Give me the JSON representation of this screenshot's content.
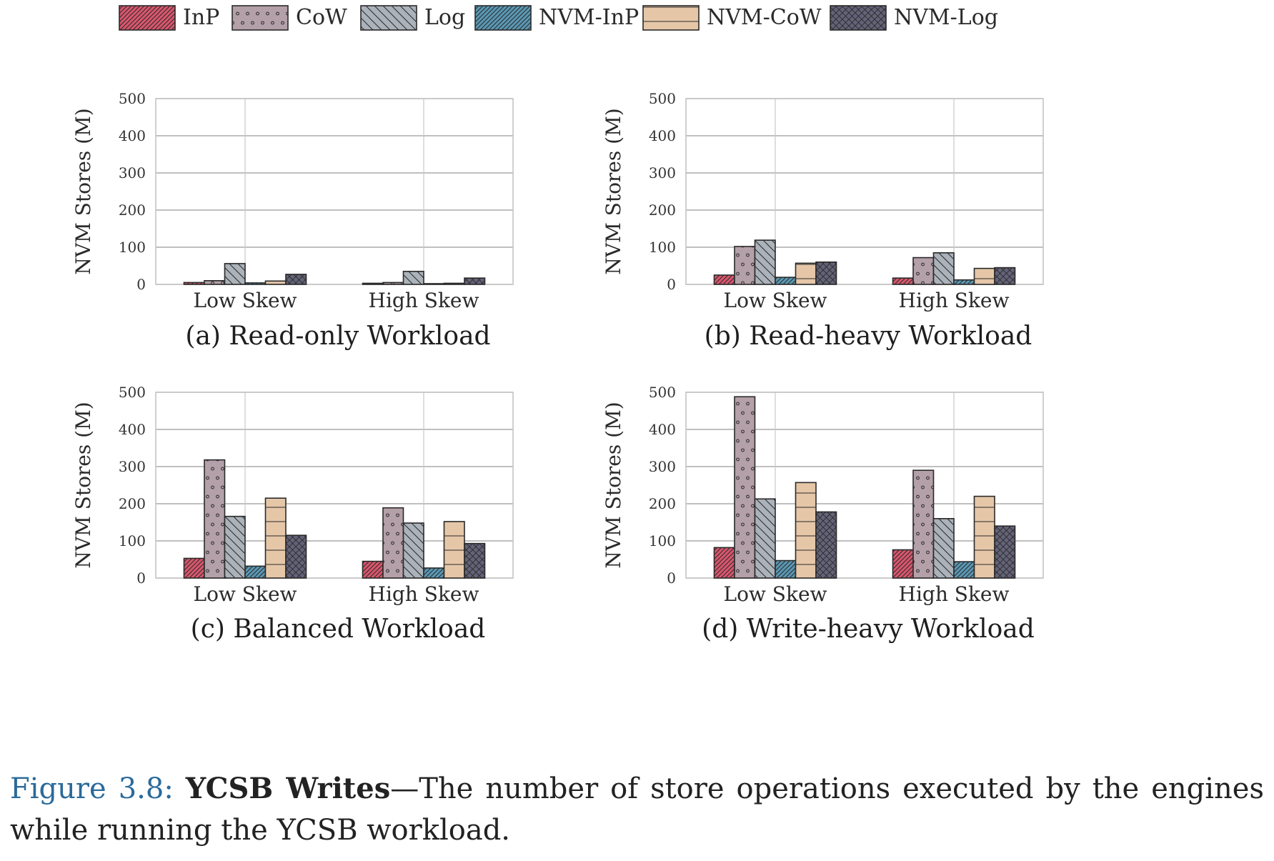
{
  "legend": [
    {
      "name": "InP",
      "color": "#d9566d",
      "pattern": "diag-fwd-dense"
    },
    {
      "name": "CoW",
      "color": "#b4a0a8",
      "pattern": "dots"
    },
    {
      "name": "Log",
      "color": "#abb2ba",
      "pattern": "diag-back"
    },
    {
      "name": "NVM-InP",
      "color": "#5a98b4",
      "pattern": "diag-fwd-dense"
    },
    {
      "name": "NVM-CoW",
      "color": "#e5c7a8",
      "pattern": "horizontal"
    },
    {
      "name": "NVM-Log",
      "color": "#636278",
      "pattern": "crosshatch"
    }
  ],
  "caption": {
    "label": "Figure 3.8:",
    "bold": "YCSB Writes",
    "text": "—The number of store operations executed by the engines while running the YCSB workload."
  },
  "chart_data": [
    {
      "type": "bar",
      "title": "(a) Read-only Workload",
      "ylabel": "NVM Stores (M)",
      "xlabel": "",
      "ylim": [
        0,
        500
      ],
      "yticks": [
        0,
        100,
        200,
        300,
        400,
        500
      ],
      "grid": true,
      "categories": [
        "Low Skew",
        "High Skew"
      ],
      "series": [
        {
          "name": "InP",
          "values": [
            5,
            3
          ]
        },
        {
          "name": "CoW",
          "values": [
            10,
            5
          ]
        },
        {
          "name": "Log",
          "values": [
            56,
            35
          ]
        },
        {
          "name": "NVM-InP",
          "values": [
            4,
            2
          ]
        },
        {
          "name": "NVM-CoW",
          "values": [
            9,
            3
          ]
        },
        {
          "name": "NVM-Log",
          "values": [
            27,
            17
          ]
        }
      ]
    },
    {
      "type": "bar",
      "title": "(b) Read-heavy Workload",
      "ylabel": "NVM Stores (M)",
      "xlabel": "",
      "ylim": [
        0,
        500
      ],
      "yticks": [
        0,
        100,
        200,
        300,
        400,
        500
      ],
      "grid": true,
      "categories": [
        "Low Skew",
        "High Skew"
      ],
      "series": [
        {
          "name": "InP",
          "values": [
            25,
            17
          ]
        },
        {
          "name": "CoW",
          "values": [
            102,
            72
          ]
        },
        {
          "name": "Log",
          "values": [
            119,
            85
          ]
        },
        {
          "name": "NVM-InP",
          "values": [
            19,
            12
          ]
        },
        {
          "name": "NVM-CoW",
          "values": [
            57,
            43
          ]
        },
        {
          "name": "NVM-Log",
          "values": [
            60,
            45
          ]
        }
      ]
    },
    {
      "type": "bar",
      "title": "(c) Balanced Workload",
      "ylabel": "NVM Stores (M)",
      "xlabel": "",
      "ylim": [
        0,
        500
      ],
      "yticks": [
        0,
        100,
        200,
        300,
        400,
        500
      ],
      "grid": true,
      "categories": [
        "Low Skew",
        "High Skew"
      ],
      "series": [
        {
          "name": "InP",
          "values": [
            53,
            45
          ]
        },
        {
          "name": "CoW",
          "values": [
            318,
            189
          ]
        },
        {
          "name": "Log",
          "values": [
            166,
            148
          ]
        },
        {
          "name": "NVM-InP",
          "values": [
            32,
            27
          ]
        },
        {
          "name": "NVM-CoW",
          "values": [
            215,
            152
          ]
        },
        {
          "name": "NVM-Log",
          "values": [
            115,
            93
          ]
        }
      ]
    },
    {
      "type": "bar",
      "title": "(d) Write-heavy Workload",
      "ylabel": "NVM Stores (M)",
      "xlabel": "",
      "ylim": [
        0,
        500
      ],
      "yticks": [
        0,
        100,
        200,
        300,
        400,
        500
      ],
      "grid": true,
      "categories": [
        "Low Skew",
        "High Skew"
      ],
      "series": [
        {
          "name": "InP",
          "values": [
            82,
            76
          ]
        },
        {
          "name": "CoW",
          "values": [
            488,
            290
          ]
        },
        {
          "name": "Log",
          "values": [
            213,
            160
          ]
        },
        {
          "name": "NVM-InP",
          "values": [
            47,
            44
          ]
        },
        {
          "name": "NVM-CoW",
          "values": [
            257,
            220
          ]
        },
        {
          "name": "NVM-Log",
          "values": [
            178,
            140
          ]
        }
      ]
    }
  ]
}
